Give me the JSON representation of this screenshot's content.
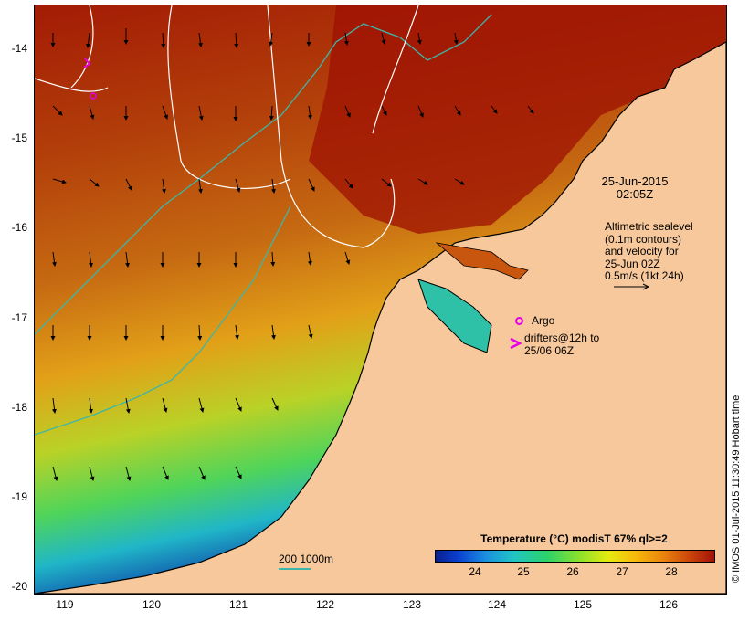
{
  "map": {
    "date": "25-Jun-2015",
    "time": "02:05Z",
    "altimetry_lines": [
      "Altimetric sealevel",
      "(0.1m contours)",
      "and velocity for",
      "25-Jun 02Z",
      "0.5m/s (1kt 24h)"
    ],
    "argo_label": "Argo",
    "drifters_lines": [
      "drifters@12h to",
      "25/06 06Z"
    ],
    "depth_legend": "200  1000m",
    "colorbar": {
      "title": "Temperature (°C) modisT 67% ql>=2",
      "ticks": [
        "24",
        "25",
        "26",
        "27",
        "28"
      ]
    },
    "lat_ticks": [
      "-14",
      "-15",
      "-16",
      "-17",
      "-18",
      "-19",
      "-20"
    ],
    "lon_ticks": [
      "119",
      "120",
      "121",
      "122",
      "123",
      "124",
      "125",
      "126"
    ],
    "credit": "© IMOS 01-Jul-2015 11:30:49 Hobart time",
    "colors": {
      "land": "#f7c89b",
      "warm_water": "#a31b05",
      "cool_water": "#0a2aa0",
      "isobath": "#3cb6a8",
      "contour": "#ffffff",
      "marker": "#e600e6"
    }
  }
}
